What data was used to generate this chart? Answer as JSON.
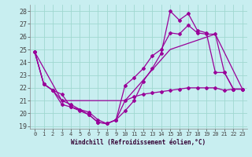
{
  "xlabel": "Windchill (Refroidissement éolien,°C)",
  "background_color": "#c8eef0",
  "grid_color": "#a0d8d0",
  "line_color": "#990099",
  "xlim": [
    -0.5,
    23.5
  ],
  "ylim": [
    18.8,
    28.5
  ],
  "yticks": [
    19,
    20,
    21,
    22,
    23,
    24,
    25,
    26,
    27,
    28
  ],
  "xticks": [
    0,
    1,
    2,
    3,
    4,
    5,
    6,
    7,
    8,
    9,
    10,
    11,
    12,
    13,
    14,
    15,
    16,
    17,
    18,
    19,
    20,
    21,
    22,
    23
  ],
  "line1_x": [
    0,
    1,
    2,
    3,
    4,
    5,
    6,
    7,
    8,
    9,
    10,
    11,
    12,
    13,
    14,
    15,
    16,
    17,
    18,
    19,
    20,
    21,
    22,
    23
  ],
  "line1_y": [
    24.8,
    22.3,
    21.8,
    21.0,
    20.7,
    20.3,
    19.9,
    19.3,
    19.2,
    19.5,
    21.0,
    21.3,
    21.5,
    21.6,
    21.7,
    21.8,
    21.9,
    22.0,
    22.0,
    22.0,
    22.0,
    21.8,
    21.9,
    21.9
  ],
  "line2_x": [
    0,
    1,
    2,
    3,
    4,
    5,
    6,
    7,
    8,
    9,
    10,
    11,
    12,
    13,
    14,
    15,
    16,
    17,
    18,
    19,
    20,
    21,
    22,
    23
  ],
  "line2_y": [
    24.8,
    22.3,
    21.8,
    21.5,
    20.5,
    20.3,
    20.1,
    19.5,
    19.2,
    19.5,
    22.2,
    22.8,
    23.5,
    24.5,
    25.0,
    26.3,
    26.2,
    26.9,
    26.3,
    26.2,
    26.2,
    23.2,
    21.9,
    21.9
  ],
  "line3_x": [
    0,
    1,
    2,
    3,
    4,
    5,
    6,
    7,
    8,
    9,
    10,
    11,
    12,
    13,
    14,
    15,
    16,
    17,
    18,
    19,
    20,
    21,
    22,
    23
  ],
  "line3_y": [
    24.8,
    22.3,
    21.8,
    20.7,
    20.5,
    20.2,
    19.9,
    19.3,
    19.2,
    19.5,
    20.2,
    21.0,
    22.5,
    23.5,
    24.7,
    28.0,
    27.3,
    27.8,
    26.5,
    26.3,
    23.2,
    23.2,
    21.9,
    21.9
  ],
  "line4_x": [
    0,
    3,
    10,
    15,
    20,
    23
  ],
  "line4_y": [
    24.8,
    21.0,
    21.0,
    25.0,
    26.2,
    21.9
  ]
}
